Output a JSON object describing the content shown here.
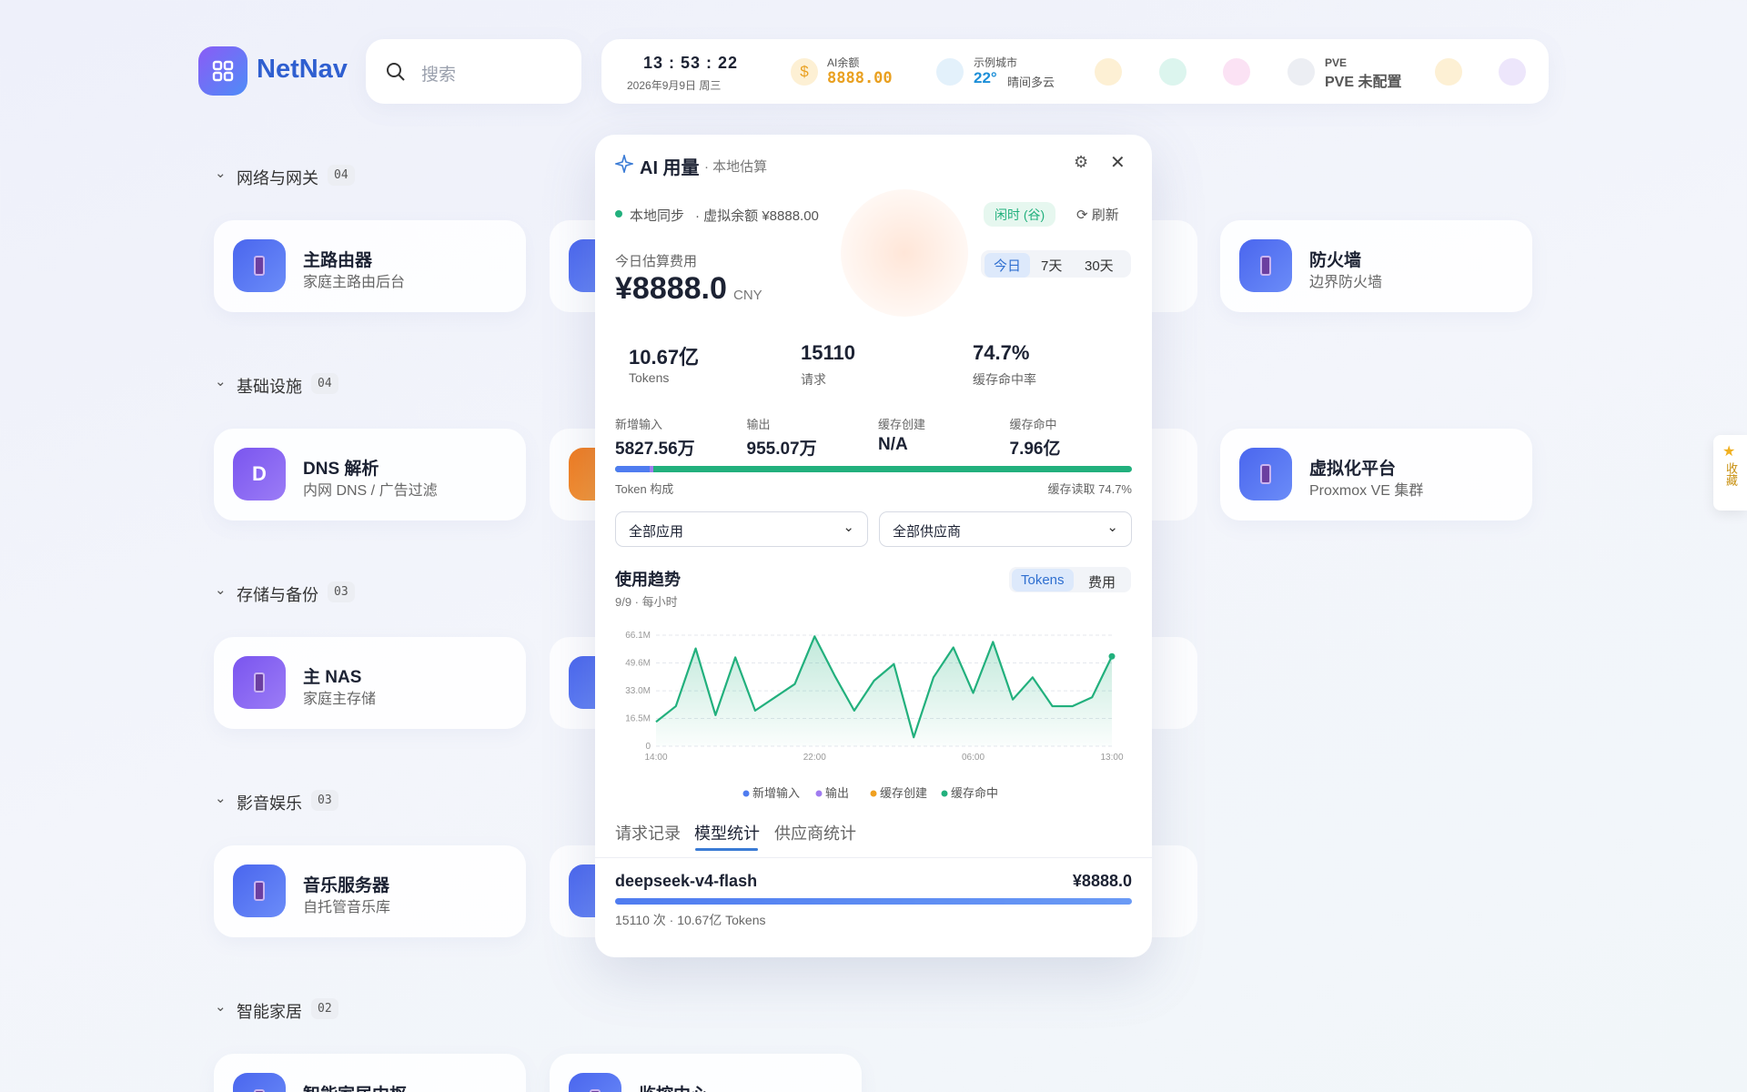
{
  "header": {
    "brand": "NetNav",
    "search_placeholder": "搜索",
    "clock": {
      "time": "13 : 53 : 22",
      "date": "2026年9月9日 周三"
    },
    "balance": {
      "label": "AI余额",
      "value": "8888.00"
    },
    "weather": {
      "city": "示例城市",
      "temp": "22°",
      "desc": "晴间多云"
    },
    "pve": {
      "label": "PVE",
      "status": "PVE 未配置"
    }
  },
  "sections": [
    {
      "title": "网络与网关",
      "count": "04",
      "cards": [
        {
          "name": "主路由器",
          "desc": "家庭主路由后台"
        },
        {
          "name": "防火墙",
          "desc": "边界防火墙"
        }
      ]
    },
    {
      "title": "基础设施",
      "count": "04",
      "cards": [
        {
          "icon": "D",
          "name": "DNS 解析",
          "desc": "内网 DNS / 广告过滤"
        },
        {
          "name": "虚拟化平台",
          "desc": "Proxmox VE 集群"
        }
      ]
    },
    {
      "title": "存储与备份",
      "count": "03",
      "cards": [
        {
          "name": "主 NAS",
          "desc": "家庭主存储"
        }
      ]
    },
    {
      "title": "影音娱乐",
      "count": "03",
      "cards": [
        {
          "name": "音乐服务器",
          "desc": "自托管音乐库"
        }
      ]
    },
    {
      "title": "智能家居",
      "count": "02",
      "cards": [
        {
          "name": "智能家居中枢"
        },
        {
          "name": "监控中心"
        }
      ]
    }
  ],
  "favorites": "收藏",
  "panel": {
    "title": "AI 用量",
    "subtitle": "· 本地估算",
    "sync": "本地同步",
    "virtual_balance": "· 虚拟余额 ¥8888.00",
    "status": "闲时 (谷)",
    "refresh": "刷新",
    "cost_label": "今日估算费用",
    "cost": "¥8888.0",
    "currency": "CNY",
    "ranges": [
      "今日",
      "7天",
      "30天"
    ],
    "stats": [
      {
        "value": "10.67亿",
        "label": "Tokens"
      },
      {
        "value": "15110",
        "label": "请求"
      },
      {
        "value": "74.7%",
        "label": "缓存命中率"
      }
    ],
    "breakdown": [
      {
        "label": "新增输入",
        "value": "5827.56万"
      },
      {
        "label": "输出",
        "value": "955.07万"
      },
      {
        "label": "缓存创建",
        "value": "N/A"
      },
      {
        "label": "缓存命中",
        "value": "7.96亿"
      }
    ],
    "composition_label": "Token 构成",
    "cache_read": "缓存读取 74.7%",
    "filters": [
      "全部应用",
      "全部供应商"
    ],
    "trend_title": "使用趋势",
    "trend_subtitle": "9/9 · 每小时",
    "metric_tabs": [
      "Tokens",
      "费用"
    ],
    "chart": {
      "type": "line",
      "categories": [
        "14:00",
        null,
        null,
        null,
        null,
        null,
        null,
        null,
        "22:00",
        null,
        null,
        null,
        null,
        null,
        null,
        null,
        "06:00",
        null,
        null,
        null,
        null,
        null,
        null,
        "13:00"
      ],
      "values": [
        14.5,
        23.8,
        58.2,
        18.5,
        52.9,
        21.2,
        29.1,
        37.0,
        65.4,
        42.3,
        21.2,
        39.0,
        48.9,
        5.3,
        41.0,
        58.8,
        31.7,
        62.1,
        27.8,
        41.0,
        23.8,
        23.8,
        29.1,
        53.5
      ],
      "color": "#22b07d",
      "ylim": [
        0,
        66.1
      ],
      "yticks": [
        0,
        {
          "value": 16.5,
          "label": "16.5M"
        },
        {
          "value": 33.0,
          "label": "33.0M"
        },
        {
          "value": 49.6,
          "label": "49.6M"
        },
        {
          "value": 66.1,
          "label": "66.1M"
        }
      ],
      "grid": true,
      "legend": [
        {
          "name": "新增输入",
          "color": "#4f7cf0"
        },
        {
          "name": "输出",
          "color": "#a07cf0"
        },
        {
          "name": "缓存创建",
          "color": "#f0a020"
        },
        {
          "name": "缓存命中",
          "color": "#22b07d"
        }
      ]
    },
    "tabs": [
      "请求记录",
      "模型统计",
      "供应商统计"
    ],
    "models": [
      {
        "name": "deepseek-v4-flash",
        "cost": "¥8888.0",
        "detail": "15110 次 · 10.67亿 Tokens"
      }
    ]
  }
}
